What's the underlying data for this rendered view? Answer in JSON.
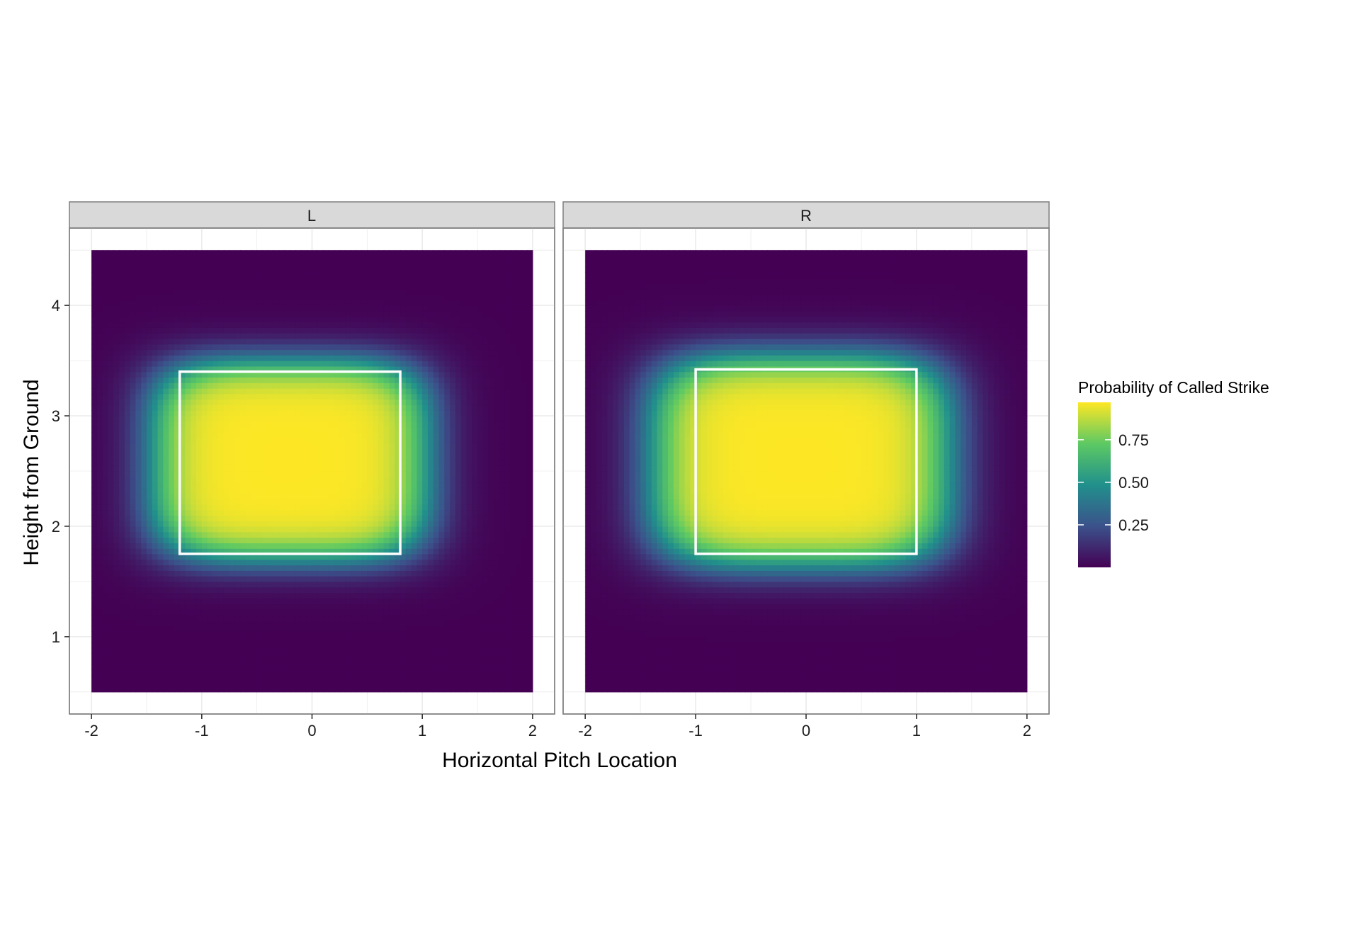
{
  "chart_data": {
    "type": "heatmap",
    "xlabel": "Horizontal Pitch Location",
    "ylabel": "Height from Ground",
    "xlim": [
      -2.2,
      2.2
    ],
    "ylim": [
      0.3,
      4.7
    ],
    "x_ticks": [
      -2,
      -1,
      0,
      1,
      2
    ],
    "x_tick_labels": [
      "-2",
      "-1",
      "0",
      "1",
      "2"
    ],
    "y_ticks": [
      1,
      2,
      3,
      4
    ],
    "y_tick_labels": [
      "1",
      "2",
      "3",
      "4"
    ],
    "grid": true,
    "legend": {
      "title": "Probability of Called Strike",
      "position": "right",
      "breaks": [
        0.25,
        0.5,
        0.75
      ],
      "labels": [
        "0.25",
        "0.50",
        "0.75"
      ],
      "range": [
        0.0,
        0.97
      ]
    },
    "colormap": [
      "#440154",
      "#3b528b",
      "#21908c",
      "#5dc963",
      "#fde725"
    ],
    "grid_extent": {
      "x": [
        -2.0,
        2.0
      ],
      "y": [
        0.5,
        4.5
      ]
    },
    "facets": [
      {
        "label": "L",
        "strike_zone": {
          "x": [
            -1.2,
            0.8
          ],
          "y": [
            1.75,
            3.4
          ]
        },
        "probability_surface": {
          "center_x": -0.2,
          "center_y": 2.6,
          "half_width": 1.25,
          "half_height": 0.9,
          "max": 0.97
        }
      },
      {
        "label": "R",
        "strike_zone": {
          "x": [
            -1.0,
            1.0
          ],
          "y": [
            1.75,
            3.42
          ]
        },
        "probability_surface": {
          "center_x": -0.05,
          "center_y": 2.6,
          "half_width": 1.35,
          "half_height": 0.95,
          "max": 0.97
        }
      }
    ]
  }
}
